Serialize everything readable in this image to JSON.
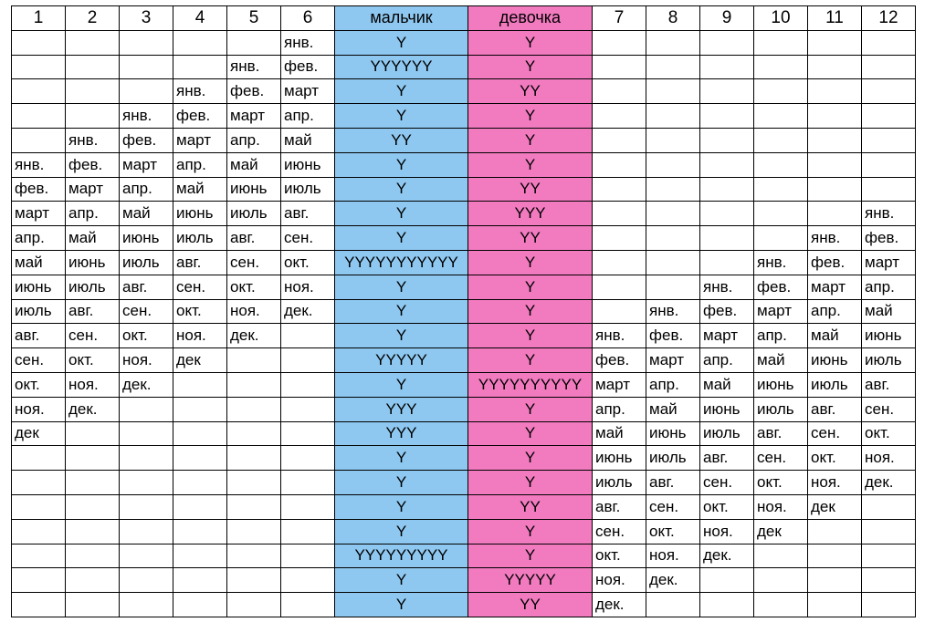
{
  "colors": {
    "boy": "#8ec8f0",
    "girl": "#f27bc0"
  },
  "headers": [
    "1",
    "2",
    "3",
    "4",
    "5",
    "6",
    "мальчик",
    "девочка",
    "7",
    "8",
    "9",
    "10",
    "11",
    "12"
  ],
  "months": [
    "янв.",
    "фев.",
    "март",
    "апр.",
    "май",
    "июнь",
    "июль",
    "авг.",
    "сен.",
    "окт.",
    "ноя.",
    "дек"
  ],
  "rows": [
    [
      "",
      "",
      "",
      "",
      "",
      "янв.",
      "Y",
      "Y",
      "",
      "",
      "",
      "",
      "",
      ""
    ],
    [
      "",
      "",
      "",
      "",
      "янв.",
      "фев.",
      "YYYYYY",
      "Y",
      "",
      "",
      "",
      "",
      "",
      ""
    ],
    [
      "",
      "",
      "",
      "янв.",
      "фев.",
      "март",
      "Y",
      "YY",
      "",
      "",
      "",
      "",
      "",
      ""
    ],
    [
      "",
      "",
      "янв.",
      "фев.",
      "март",
      "апр.",
      "Y",
      "Y",
      "",
      "",
      "",
      "",
      "",
      ""
    ],
    [
      "",
      "янв.",
      "фев.",
      "март",
      "апр.",
      "май",
      "YY",
      "Y",
      "",
      "",
      "",
      "",
      "",
      ""
    ],
    [
      "янв.",
      "фев.",
      "март",
      "апр.",
      "май",
      "июнь",
      "Y",
      "Y",
      "",
      "",
      "",
      "",
      "",
      ""
    ],
    [
      "фев.",
      "март",
      "апр.",
      "май",
      "июнь",
      "июль",
      "Y",
      "YY",
      "",
      "",
      "",
      "",
      "",
      ""
    ],
    [
      "март",
      "апр.",
      "май",
      "июнь",
      "июль",
      "авг.",
      "Y",
      "YYY",
      "",
      "",
      "",
      "",
      "",
      "янв."
    ],
    [
      "апр.",
      "май",
      "июнь",
      "июль",
      "авг.",
      "сен.",
      "Y",
      "YY",
      "",
      "",
      "",
      "",
      "янв.",
      "фев."
    ],
    [
      "май",
      "июнь",
      "июль",
      "авг.",
      "сен.",
      "окт.",
      "YYYYYYYYYYY",
      "Y",
      "",
      "",
      "",
      "янв.",
      "фев.",
      "март"
    ],
    [
      "июнь",
      "июль",
      "авг.",
      "сен.",
      "окт.",
      "ноя.",
      "Y",
      "Y",
      "",
      "",
      "янв.",
      "фев.",
      "март",
      "апр."
    ],
    [
      "июль",
      "авг.",
      "сен.",
      "окт.",
      "ноя.",
      "дек.",
      "Y",
      "Y",
      "",
      "янв.",
      "фев.",
      "март",
      "апр.",
      "май"
    ],
    [
      "авг.",
      "сен.",
      "окт.",
      "ноя.",
      "дек.",
      "",
      "Y",
      "Y",
      "янв.",
      "фев.",
      "март",
      "апр.",
      "май",
      "июнь"
    ],
    [
      "сен.",
      "окт.",
      "ноя.",
      "дек",
      "",
      "",
      "YYYYY",
      "Y",
      "фев.",
      "март",
      "апр.",
      "май",
      "июнь",
      "июль"
    ],
    [
      "окт.",
      "ноя.",
      "дек.",
      "",
      "",
      "",
      "Y",
      "YYYYYYYYYY",
      "март",
      "апр.",
      "май",
      "июнь",
      "июль",
      "авг."
    ],
    [
      "ноя.",
      "дек.",
      "",
      "",
      "",
      "",
      "YYY",
      "Y",
      "апр.",
      "май",
      "июнь",
      "июль",
      "авг.",
      "сен."
    ],
    [
      "дек",
      "",
      "",
      "",
      "",
      "",
      "YYY",
      "Y",
      "май",
      "июнь",
      "июль",
      "авг.",
      "сен.",
      "окт."
    ],
    [
      "",
      "",
      "",
      "",
      "",
      "",
      "Y",
      "Y",
      "июнь",
      "июль",
      "авг.",
      "сен.",
      "окт.",
      "ноя."
    ],
    [
      "",
      "",
      "",
      "",
      "",
      "",
      "Y",
      "Y",
      "июль",
      "авг.",
      "сен.",
      "окт.",
      "ноя.",
      "дек."
    ],
    [
      "",
      "",
      "",
      "",
      "",
      "",
      "Y",
      "YY",
      "авг.",
      "сен.",
      "окт.",
      "ноя.",
      "дек",
      ""
    ],
    [
      "",
      "",
      "",
      "",
      "",
      "",
      "Y",
      "Y",
      "сен.",
      "окт.",
      "ноя.",
      "дек",
      "",
      ""
    ],
    [
      "",
      "",
      "",
      "",
      "",
      "",
      "YYYYYYYYY",
      "Y",
      "окт.",
      "ноя.",
      "дек.",
      "",
      "",
      ""
    ],
    [
      "",
      "",
      "",
      "",
      "",
      "",
      "Y",
      "YYYYY",
      "ноя.",
      "дек.",
      "",
      "",
      "",
      ""
    ],
    [
      "",
      "",
      "",
      "",
      "",
      "",
      "Y",
      "YY",
      "дек.",
      "",
      "",
      "",
      "",
      ""
    ]
  ]
}
